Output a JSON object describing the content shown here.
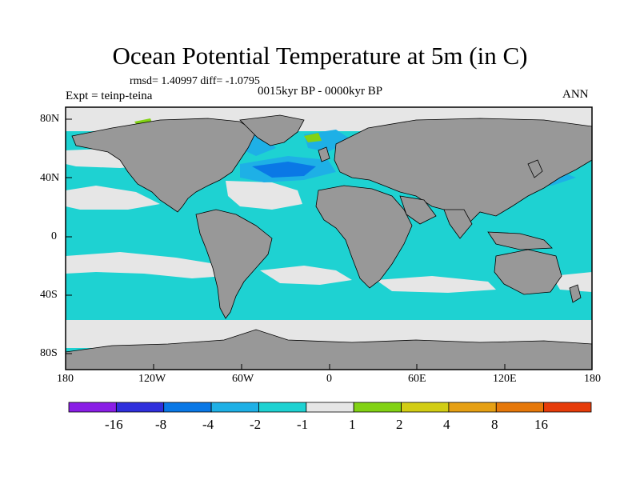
{
  "header": {
    "title": "Ocean Potential Temperature at 5m (in C)",
    "stats": "rmsd= 1.40997 diff= -1.0795",
    "expt": "Expt = teinp-teina",
    "period": "0015kyr BP - 0000kyr BP",
    "season": "ANN"
  },
  "axes": {
    "lat_labels": [
      "80N",
      "40N",
      "0",
      "40S",
      "80S"
    ],
    "lon_labels": [
      "180",
      "120W",
      "60W",
      "0",
      "60E",
      "120E",
      "180"
    ]
  },
  "colorbar": {
    "colors": [
      "#8a1ee6",
      "#2f2fdc",
      "#0a78e6",
      "#1eb0e6",
      "#1ed2d2",
      "#e6e6e6",
      "#82d214",
      "#d2cd14",
      "#e6a014",
      "#e6780a",
      "#e63c0a"
    ],
    "labels": [
      "-16",
      "-8",
      "-4",
      "-2",
      "-1",
      "1",
      "2",
      "4",
      "8",
      "16"
    ]
  },
  "palette": {
    "land": "#989898",
    "ocean_small": "#1ed2d2",
    "neutral": "#e6e6e6",
    "cool_mid": "#1eb0e6",
    "cool_strong": "#0a78e6",
    "warm_small": "#82d214"
  }
}
